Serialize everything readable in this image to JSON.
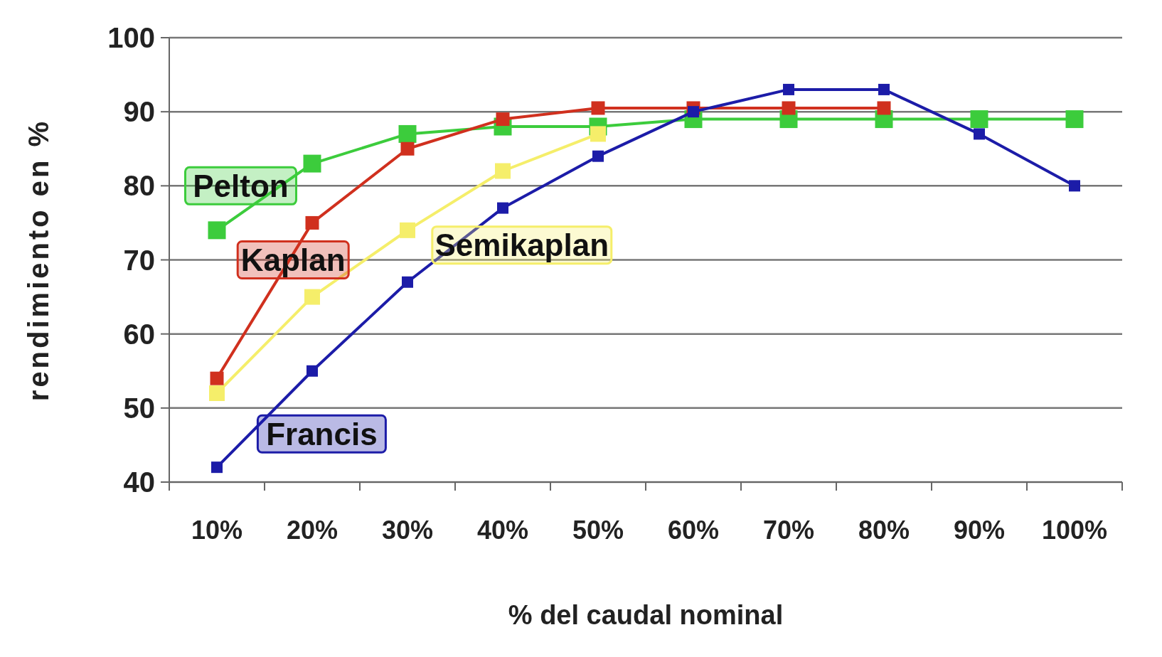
{
  "chart_data": {
    "type": "line",
    "xlabel": "% del caudal nominal",
    "ylabel": "rendimiento en %",
    "categories": [
      "10%",
      "20%",
      "30%",
      "40%",
      "50%",
      "60%",
      "70%",
      "80%",
      "90%",
      "100%"
    ],
    "series": [
      {
        "name": "Francis",
        "color": "#1c1ca8",
        "values": [
          42,
          55,
          67,
          77,
          84,
          90,
          93,
          93,
          87,
          80
        ]
      },
      {
        "name": "Kaplan",
        "color": "#d0301e",
        "values": [
          54,
          75,
          85,
          89,
          90.5,
          90.5,
          90.5,
          90.5,
          null,
          null
        ]
      },
      {
        "name": "Semikaplan",
        "color": "#f5ee6a",
        "values": [
          52,
          65,
          74,
          82,
          87,
          null,
          null,
          null,
          null,
          null
        ]
      },
      {
        "name": "Pelton",
        "color": "#3ccc3c",
        "values": [
          74,
          83,
          87,
          88,
          88,
          89,
          89,
          89,
          89,
          89
        ]
      }
    ],
    "ylim": [
      40,
      100
    ],
    "yticks": [
      40,
      50,
      60,
      70,
      80,
      90,
      100
    ],
    "grid": "y",
    "marker": "square",
    "line_style": "solid"
  }
}
